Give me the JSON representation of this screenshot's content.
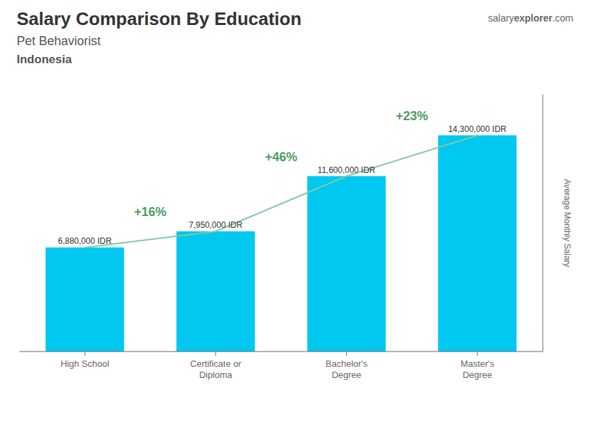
{
  "chart_data": {
    "type": "bar",
    "title": "Salary Comparison By Education",
    "subtitle": [
      "Pet Behaviorist",
      "Indonesia"
    ],
    "y_label": "Average Monthly Salary",
    "categories": [
      "High School",
      "Certificate or\nDiploma",
      "Bachelor's\nDegree",
      "Master's\nDegree"
    ],
    "values": [
      6880000,
      7950000,
      11600000,
      14300000
    ],
    "value_labels": [
      "6,880,000 IDR",
      "7,950,000 IDR",
      "11,600,000 IDR",
      "14,300,000 IDR"
    ],
    "data_labels": true,
    "color": "#00c8f0",
    "ylim": [
      0,
      17000000
    ],
    "tick_labels": "x",
    "grid": false,
    "annotations": [
      {
        "text": "salary"
      },
      {
        "text": "explorer"
      },
      {
        "text": ".com"
      },
      {
        "text": "+16%",
        "from": "High School",
        "to": "Certificate or\nDiploma"
      },
      {
        "text": "+46%",
        "from": "Certificate or\nDiploma",
        "to": "Bachelor's\nDegree"
      },
      {
        "text": "+23%",
        "from": "Bachelor's\nDegree",
        "to": "Master's\nDegree"
      }
    ]
  }
}
